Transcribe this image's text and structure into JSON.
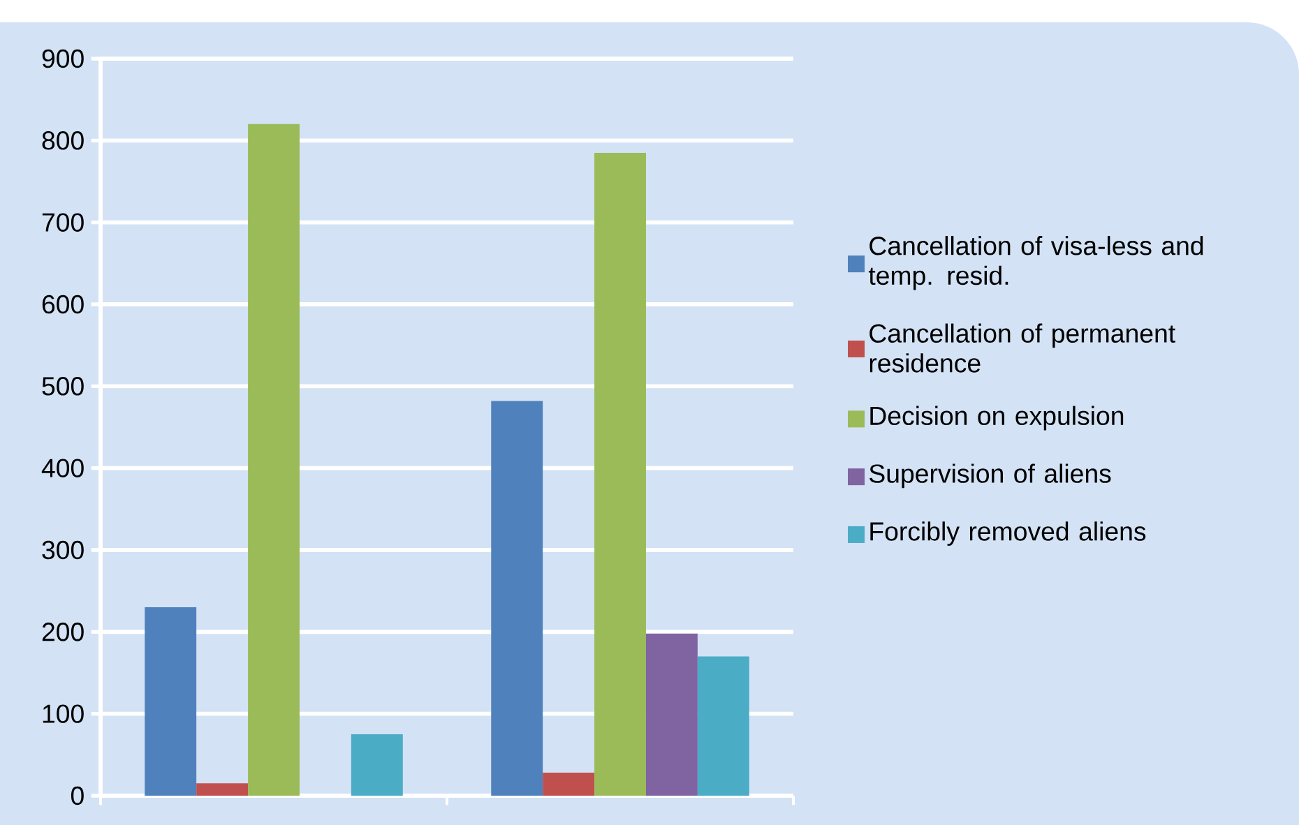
{
  "chart_data": {
    "type": "bar",
    "categories": [
      null,
      null
    ],
    "series": [
      {
        "name": "Cancellation of visa-less and temp. resid.",
        "color": "#4f81bd",
        "values": [
          230,
          482
        ]
      },
      {
        "name": "Cancellation of permanent residence",
        "color": "#c0504d",
        "values": [
          15,
          28
        ]
      },
      {
        "name": "Decision on expulsion",
        "color": "#9bbb59",
        "values": [
          820,
          785
        ]
      },
      {
        "name": "Supervision of aliens",
        "color": "#8064a2",
        "values": [
          null,
          198
        ]
      },
      {
        "name": "Forcibly removed aliens",
        "color": "#4bacc6",
        "values": [
          75,
          170
        ]
      }
    ],
    "ylim": [
      0,
      900
    ],
    "yticks": [
      0,
      100,
      200,
      300,
      400,
      500,
      600,
      700,
      800,
      900
    ],
    "grid": "y",
    "legend": "right",
    "tick_labels": "y"
  }
}
